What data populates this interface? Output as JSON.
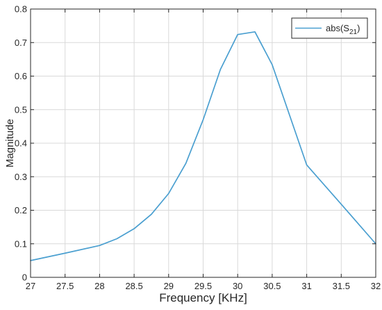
{
  "chart_data": {
    "type": "line",
    "title": "",
    "xlabel": "Frequency [KHz]",
    "ylabel": "Magnitude",
    "xlim": [
      27,
      32
    ],
    "ylim": [
      0,
      0.8
    ],
    "xticks": [
      27,
      27.5,
      28,
      28.5,
      29,
      29.5,
      30,
      30.5,
      31,
      31.5,
      32
    ],
    "xtick_labels": [
      "27",
      "27.5",
      "28",
      "28.5",
      "29",
      "29.5",
      "30",
      "30.5",
      "31",
      "31.5",
      "32"
    ],
    "yticks": [
      0,
      0.1,
      0.2,
      0.3,
      0.4,
      0.5,
      0.6,
      0.7,
      0.8
    ],
    "ytick_labels": [
      "0",
      "0.1",
      "0.2",
      "0.3",
      "0.4",
      "0.5",
      "0.6",
      "0.7",
      "0.8"
    ],
    "grid": true,
    "legend_position": "top-right",
    "series": [
      {
        "name": "abs(S21)",
        "color": "#4a9fd0",
        "x": [
          27,
          27.5,
          28,
          28.25,
          28.5,
          28.75,
          29,
          29.25,
          29.5,
          29.75,
          30,
          30.25,
          30.5,
          31,
          31.5,
          32
        ],
        "y": [
          0.05,
          0.072,
          0.095,
          0.115,
          0.145,
          0.188,
          0.25,
          0.34,
          0.47,
          0.62,
          0.724,
          0.732,
          0.634,
          0.335,
          0.218,
          0.1
        ]
      }
    ],
    "legend": {
      "label_main": "abs(S",
      "label_sub": "21",
      "label_close": ")"
    }
  }
}
